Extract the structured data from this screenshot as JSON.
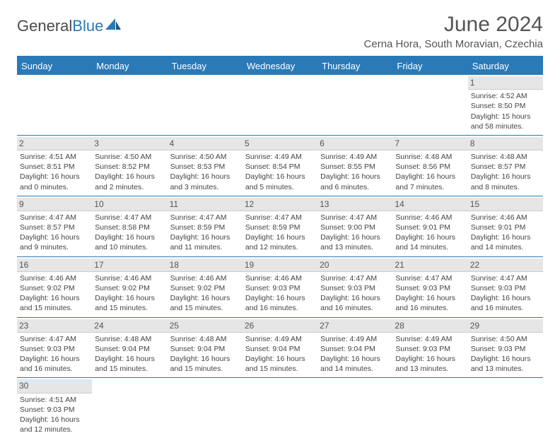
{
  "logo": {
    "text1": "General",
    "text2": "Blue"
  },
  "title": "June 2024",
  "subtitle": "Cerna Hora, South Moravian, Czechia",
  "colors": {
    "header_bg": "#2a7ab8",
    "header_text": "#ffffff",
    "body_text": "#444444",
    "daynum_bg": "#e6e6e6",
    "rule": "#2a7ab8"
  },
  "day_headers": [
    "Sunday",
    "Monday",
    "Tuesday",
    "Wednesday",
    "Thursday",
    "Friday",
    "Saturday"
  ],
  "weeks": [
    [
      null,
      null,
      null,
      null,
      null,
      null,
      {
        "n": "1",
        "sunrise": "Sunrise: 4:52 AM",
        "sunset": "Sunset: 8:50 PM",
        "daylight": "Daylight: 15 hours and 58 minutes."
      }
    ],
    [
      {
        "n": "2",
        "sunrise": "Sunrise: 4:51 AM",
        "sunset": "Sunset: 8:51 PM",
        "daylight": "Daylight: 16 hours and 0 minutes."
      },
      {
        "n": "3",
        "sunrise": "Sunrise: 4:50 AM",
        "sunset": "Sunset: 8:52 PM",
        "daylight": "Daylight: 16 hours and 2 minutes."
      },
      {
        "n": "4",
        "sunrise": "Sunrise: 4:50 AM",
        "sunset": "Sunset: 8:53 PM",
        "daylight": "Daylight: 16 hours and 3 minutes."
      },
      {
        "n": "5",
        "sunrise": "Sunrise: 4:49 AM",
        "sunset": "Sunset: 8:54 PM",
        "daylight": "Daylight: 16 hours and 5 minutes."
      },
      {
        "n": "6",
        "sunrise": "Sunrise: 4:49 AM",
        "sunset": "Sunset: 8:55 PM",
        "daylight": "Daylight: 16 hours and 6 minutes."
      },
      {
        "n": "7",
        "sunrise": "Sunrise: 4:48 AM",
        "sunset": "Sunset: 8:56 PM",
        "daylight": "Daylight: 16 hours and 7 minutes."
      },
      {
        "n": "8",
        "sunrise": "Sunrise: 4:48 AM",
        "sunset": "Sunset: 8:57 PM",
        "daylight": "Daylight: 16 hours and 8 minutes."
      }
    ],
    [
      {
        "n": "9",
        "sunrise": "Sunrise: 4:47 AM",
        "sunset": "Sunset: 8:57 PM",
        "daylight": "Daylight: 16 hours and 9 minutes."
      },
      {
        "n": "10",
        "sunrise": "Sunrise: 4:47 AM",
        "sunset": "Sunset: 8:58 PM",
        "daylight": "Daylight: 16 hours and 10 minutes."
      },
      {
        "n": "11",
        "sunrise": "Sunrise: 4:47 AM",
        "sunset": "Sunset: 8:59 PM",
        "daylight": "Daylight: 16 hours and 11 minutes."
      },
      {
        "n": "12",
        "sunrise": "Sunrise: 4:47 AM",
        "sunset": "Sunset: 8:59 PM",
        "daylight": "Daylight: 16 hours and 12 minutes."
      },
      {
        "n": "13",
        "sunrise": "Sunrise: 4:47 AM",
        "sunset": "Sunset: 9:00 PM",
        "daylight": "Daylight: 16 hours and 13 minutes."
      },
      {
        "n": "14",
        "sunrise": "Sunrise: 4:46 AM",
        "sunset": "Sunset: 9:01 PM",
        "daylight": "Daylight: 16 hours and 14 minutes."
      },
      {
        "n": "15",
        "sunrise": "Sunrise: 4:46 AM",
        "sunset": "Sunset: 9:01 PM",
        "daylight": "Daylight: 16 hours and 14 minutes."
      }
    ],
    [
      {
        "n": "16",
        "sunrise": "Sunrise: 4:46 AM",
        "sunset": "Sunset: 9:02 PM",
        "daylight": "Daylight: 16 hours and 15 minutes."
      },
      {
        "n": "17",
        "sunrise": "Sunrise: 4:46 AM",
        "sunset": "Sunset: 9:02 PM",
        "daylight": "Daylight: 16 hours and 15 minutes."
      },
      {
        "n": "18",
        "sunrise": "Sunrise: 4:46 AM",
        "sunset": "Sunset: 9:02 PM",
        "daylight": "Daylight: 16 hours and 15 minutes."
      },
      {
        "n": "19",
        "sunrise": "Sunrise: 4:46 AM",
        "sunset": "Sunset: 9:03 PM",
        "daylight": "Daylight: 16 hours and 16 minutes."
      },
      {
        "n": "20",
        "sunrise": "Sunrise: 4:47 AM",
        "sunset": "Sunset: 9:03 PM",
        "daylight": "Daylight: 16 hours and 16 minutes."
      },
      {
        "n": "21",
        "sunrise": "Sunrise: 4:47 AM",
        "sunset": "Sunset: 9:03 PM",
        "daylight": "Daylight: 16 hours and 16 minutes."
      },
      {
        "n": "22",
        "sunrise": "Sunrise: 4:47 AM",
        "sunset": "Sunset: 9:03 PM",
        "daylight": "Daylight: 16 hours and 16 minutes."
      }
    ],
    [
      {
        "n": "23",
        "sunrise": "Sunrise: 4:47 AM",
        "sunset": "Sunset: 9:03 PM",
        "daylight": "Daylight: 16 hours and 16 minutes."
      },
      {
        "n": "24",
        "sunrise": "Sunrise: 4:48 AM",
        "sunset": "Sunset: 9:04 PM",
        "daylight": "Daylight: 16 hours and 15 minutes."
      },
      {
        "n": "25",
        "sunrise": "Sunrise: 4:48 AM",
        "sunset": "Sunset: 9:04 PM",
        "daylight": "Daylight: 16 hours and 15 minutes."
      },
      {
        "n": "26",
        "sunrise": "Sunrise: 4:49 AM",
        "sunset": "Sunset: 9:04 PM",
        "daylight": "Daylight: 16 hours and 15 minutes."
      },
      {
        "n": "27",
        "sunrise": "Sunrise: 4:49 AM",
        "sunset": "Sunset: 9:04 PM",
        "daylight": "Daylight: 16 hours and 14 minutes."
      },
      {
        "n": "28",
        "sunrise": "Sunrise: 4:49 AM",
        "sunset": "Sunset: 9:03 PM",
        "daylight": "Daylight: 16 hours and 13 minutes."
      },
      {
        "n": "29",
        "sunrise": "Sunrise: 4:50 AM",
        "sunset": "Sunset: 9:03 PM",
        "daylight": "Daylight: 16 hours and 13 minutes."
      }
    ],
    [
      {
        "n": "30",
        "sunrise": "Sunrise: 4:51 AM",
        "sunset": "Sunset: 9:03 PM",
        "daylight": "Daylight: 16 hours and 12 minutes."
      },
      null,
      null,
      null,
      null,
      null,
      null
    ]
  ]
}
